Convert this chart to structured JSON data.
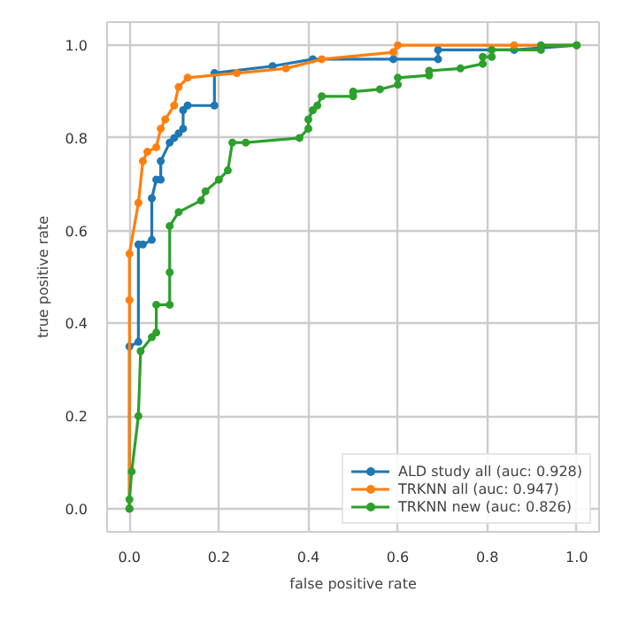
{
  "chart_data": {
    "type": "line",
    "xlabel": "false positive rate",
    "ylabel": "true positive rate",
    "xlim": [
      -0.05,
      1.05
    ],
    "ylim": [
      -0.05,
      1.05
    ],
    "xticks": [
      {
        "value": 0,
        "label": "0.0"
      },
      {
        "value": 0.2,
        "label": "0.2"
      },
      {
        "value": 0.4,
        "label": "0.4"
      },
      {
        "value": 0.6,
        "label": "0.6"
      },
      {
        "value": 0.8,
        "label": "0.8"
      },
      {
        "value": 1,
        "label": "1.0"
      }
    ],
    "yticks": [
      {
        "value": 0,
        "label": "0.0"
      },
      {
        "value": 0.2,
        "label": "0.2"
      },
      {
        "value": 0.4,
        "label": "0.4"
      },
      {
        "value": 0.6,
        "label": "0.6"
      },
      {
        "value": 0.8,
        "label": "0.8"
      },
      {
        "value": 1,
        "label": "1.0"
      }
    ],
    "grid": true,
    "legend": "bottom right",
    "marker": "circle",
    "line_style": "solid",
    "series": [
      {
        "name": "ALD study all (auc: 0.928)",
        "color": "#1f77b4",
        "x": [
          0,
          0,
          0.02,
          0.02,
          0.03,
          0.05,
          0.05,
          0.06,
          0.07,
          0.07,
          0.09,
          0.1,
          0.11,
          0.12,
          0.12,
          0.13,
          0.19,
          0.19,
          0.32,
          0.41,
          0.59,
          0.69,
          0.69,
          0.86,
          1.0
        ],
        "values": [
          0,
          0.35,
          0.36,
          0.57,
          0.57,
          0.58,
          0.67,
          0.71,
          0.71,
          0.75,
          0.79,
          0.8,
          0.81,
          0.82,
          0.86,
          0.87,
          0.87,
          0.94,
          0.955,
          0.97,
          0.97,
          0.97,
          0.99,
          0.99,
          1.0
        ]
      },
      {
        "name": "TRKNN all (auc: 0.947)",
        "color": "#ff7f0e",
        "x": [
          0,
          0,
          0,
          0.02,
          0.03,
          0.04,
          0.06,
          0.07,
          0.08,
          0.1,
          0.11,
          0.13,
          0.24,
          0.35,
          0.43,
          0.59,
          0.6,
          0.86,
          1.0
        ],
        "values": [
          0,
          0.45,
          0.55,
          0.66,
          0.75,
          0.77,
          0.78,
          0.82,
          0.84,
          0.87,
          0.91,
          0.93,
          0.94,
          0.95,
          0.97,
          0.985,
          1.0,
          1.0,
          1.0
        ]
      },
      {
        "name": "TRKNN new (auc: 0.826)",
        "color": "#2ca02c",
        "x": [
          0,
          0,
          0.005,
          0.02,
          0.025,
          0.05,
          0.06,
          0.06,
          0.09,
          0.09,
          0.09,
          0.11,
          0.16,
          0.17,
          0.2,
          0.22,
          0.23,
          0.26,
          0.38,
          0.4,
          0.4,
          0.41,
          0.42,
          0.43,
          0.5,
          0.5,
          0.56,
          0.6,
          0.6,
          0.67,
          0.67,
          0.74,
          0.79,
          0.79,
          0.81,
          0.81,
          0.92,
          0.92,
          1.0
        ],
        "values": [
          0,
          0.02,
          0.08,
          0.2,
          0.34,
          0.37,
          0.38,
          0.44,
          0.44,
          0.51,
          0.61,
          0.64,
          0.665,
          0.685,
          0.71,
          0.73,
          0.79,
          0.79,
          0.8,
          0.82,
          0.84,
          0.86,
          0.87,
          0.89,
          0.89,
          0.9,
          0.905,
          0.915,
          0.93,
          0.935,
          0.945,
          0.95,
          0.96,
          0.975,
          0.975,
          0.99,
          0.99,
          1.0,
          1.0
        ]
      }
    ]
  }
}
